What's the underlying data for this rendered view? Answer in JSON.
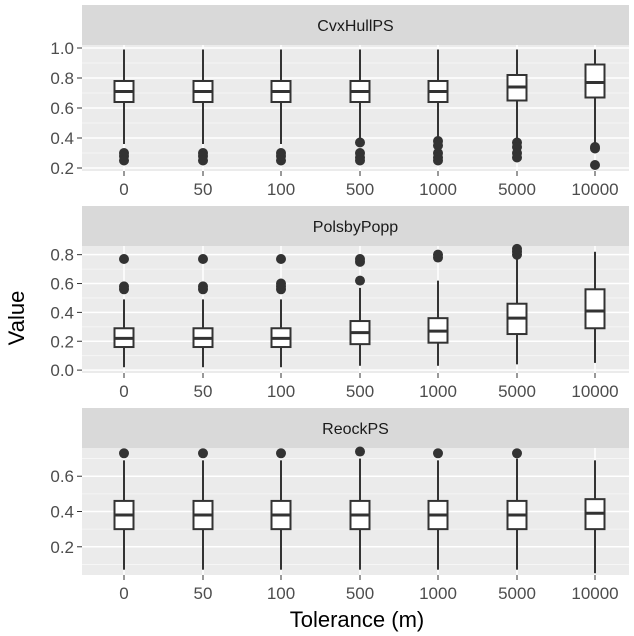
{
  "chart_data": {
    "type": "boxplot",
    "xlabel": "Tolerance (m)",
    "ylabel": "Value",
    "categories": [
      "0",
      "50",
      "100",
      "500",
      "1000",
      "5000",
      "10000"
    ],
    "grid": true,
    "facets": [
      {
        "title": "CvxHullPS",
        "ylim": [
          0.18,
          1.02
        ],
        "yticks": [
          0.2,
          0.4,
          0.6,
          0.8,
          1.0
        ],
        "ytick_labels": [
          "0.2",
          "0.4",
          "0.6",
          "0.8",
          "1.0"
        ],
        "boxes": [
          {
            "whisker_low": 0.36,
            "q1": 0.64,
            "median": 0.71,
            "q3": 0.78,
            "whisker_high": 0.99,
            "outliers": [
              0.3,
              0.28,
              0.25
            ]
          },
          {
            "whisker_low": 0.36,
            "q1": 0.64,
            "median": 0.71,
            "q3": 0.78,
            "whisker_high": 0.99,
            "outliers": [
              0.3,
              0.28,
              0.25
            ]
          },
          {
            "whisker_low": 0.36,
            "q1": 0.64,
            "median": 0.71,
            "q3": 0.78,
            "whisker_high": 0.99,
            "outliers": [
              0.3,
              0.28,
              0.25
            ]
          },
          {
            "whisker_low": 0.4,
            "q1": 0.64,
            "median": 0.71,
            "q3": 0.78,
            "whisker_high": 0.99,
            "outliers": [
              0.37,
              0.3,
              0.27,
              0.25
            ]
          },
          {
            "whisker_low": 0.41,
            "q1": 0.64,
            "median": 0.71,
            "q3": 0.78,
            "whisker_high": 0.99,
            "outliers": [
              0.38,
              0.35,
              0.3,
              0.27,
              0.25
            ]
          },
          {
            "whisker_low": 0.4,
            "q1": 0.65,
            "median": 0.74,
            "q3": 0.82,
            "whisker_high": 0.99,
            "outliers": [
              0.37,
              0.34,
              0.3,
              0.27
            ]
          },
          {
            "whisker_low": 0.37,
            "q1": 0.67,
            "median": 0.77,
            "q3": 0.89,
            "whisker_high": 0.99,
            "outliers": [
              0.34,
              0.33,
              0.22
            ]
          }
        ]
      },
      {
        "title": "PolsbyPopp",
        "ylim": [
          -0.02,
          0.86
        ],
        "yticks": [
          0.0,
          0.2,
          0.4,
          0.6,
          0.8
        ],
        "ytick_labels": [
          "0.0",
          "0.2",
          "0.4",
          "0.6",
          "0.8"
        ],
        "boxes": [
          {
            "whisker_low": 0.02,
            "q1": 0.16,
            "median": 0.22,
            "q3": 0.29,
            "whisker_high": 0.49,
            "outliers": [
              0.56,
              0.58,
              0.77
            ]
          },
          {
            "whisker_low": 0.02,
            "q1": 0.16,
            "median": 0.22,
            "q3": 0.29,
            "whisker_high": 0.49,
            "outliers": [
              0.56,
              0.58,
              0.77
            ]
          },
          {
            "whisker_low": 0.02,
            "q1": 0.16,
            "median": 0.22,
            "q3": 0.29,
            "whisker_high": 0.49,
            "outliers": [
              0.56,
              0.58,
              0.6,
              0.77
            ]
          },
          {
            "whisker_low": 0.03,
            "q1": 0.18,
            "median": 0.26,
            "q3": 0.34,
            "whisker_high": 0.57,
            "outliers": [
              0.62,
              0.75,
              0.77
            ]
          },
          {
            "whisker_low": 0.03,
            "q1": 0.19,
            "median": 0.27,
            "q3": 0.36,
            "whisker_high": 0.62,
            "outliers": [
              0.78,
              0.8
            ]
          },
          {
            "whisker_low": 0.04,
            "q1": 0.25,
            "median": 0.36,
            "q3": 0.46,
            "whisker_high": 0.77,
            "outliers": [
              0.8,
              0.82,
              0.84
            ]
          },
          {
            "whisker_low": 0.05,
            "q1": 0.29,
            "median": 0.41,
            "q3": 0.56,
            "whisker_high": 0.82,
            "outliers": []
          }
        ]
      },
      {
        "title": "ReockPS",
        "ylim": [
          0.04,
          0.76
        ],
        "yticks": [
          0.2,
          0.4,
          0.6
        ],
        "ytick_labels": [
          "0.2",
          "0.4",
          "0.6"
        ],
        "boxes": [
          {
            "whisker_low": 0.07,
            "q1": 0.3,
            "median": 0.38,
            "q3": 0.46,
            "whisker_high": 0.69,
            "outliers": [
              0.73
            ]
          },
          {
            "whisker_low": 0.07,
            "q1": 0.3,
            "median": 0.38,
            "q3": 0.46,
            "whisker_high": 0.69,
            "outliers": [
              0.73
            ]
          },
          {
            "whisker_low": 0.07,
            "q1": 0.3,
            "median": 0.38,
            "q3": 0.46,
            "whisker_high": 0.69,
            "outliers": [
              0.73
            ]
          },
          {
            "whisker_low": 0.07,
            "q1": 0.3,
            "median": 0.38,
            "q3": 0.46,
            "whisker_high": 0.7,
            "outliers": [
              0.74
            ]
          },
          {
            "whisker_low": 0.07,
            "q1": 0.3,
            "median": 0.38,
            "q3": 0.46,
            "whisker_high": 0.69,
            "outliers": [
              0.73
            ]
          },
          {
            "whisker_low": 0.07,
            "q1": 0.3,
            "median": 0.38,
            "q3": 0.46,
            "whisker_high": 0.7,
            "outliers": [
              0.73
            ]
          },
          {
            "whisker_low": 0.05,
            "q1": 0.3,
            "median": 0.39,
            "q3": 0.47,
            "whisker_high": 0.69,
            "outliers": []
          }
        ]
      }
    ]
  }
}
